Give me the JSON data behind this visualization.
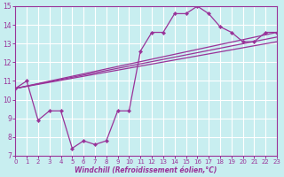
{
  "xlabel": "Windchill (Refroidissement éolien,°C)",
  "bg_color": "#c8eef0",
  "line_color": "#993399",
  "grid_color": "#ffffff",
  "xlim": [
    0,
    23
  ],
  "ylim": [
    7,
    15
  ],
  "yticks": [
    7,
    8,
    9,
    10,
    11,
    12,
    13,
    14,
    15
  ],
  "xticks": [
    0,
    1,
    2,
    3,
    4,
    5,
    6,
    7,
    8,
    9,
    10,
    11,
    12,
    13,
    14,
    15,
    16,
    17,
    18,
    19,
    20,
    21,
    22,
    23
  ],
  "series1": {
    "x": [
      0,
      1,
      2,
      3,
      4,
      5,
      6,
      7,
      8,
      9,
      10,
      11,
      12,
      13,
      14,
      15,
      16,
      17,
      18,
      19,
      20,
      21,
      22,
      23
    ],
    "y": [
      10.6,
      11.0,
      8.9,
      9.4,
      9.4,
      7.4,
      7.8,
      7.6,
      7.8,
      9.4,
      9.4,
      12.6,
      13.6,
      13.6,
      14.6,
      14.6,
      15.0,
      14.6,
      13.9,
      13.6,
      13.1,
      13.1,
      13.6,
      13.6
    ]
  },
  "line_a": {
    "x0": 0,
    "y0": 10.6,
    "x1": 23,
    "y1": 13.6
  },
  "line_b": {
    "x0": 0,
    "y0": 10.6,
    "x1": 23,
    "y1": 13.35
  },
  "line_c": {
    "x0": 0,
    "y0": 10.6,
    "x1": 23,
    "y1": 13.1
  }
}
